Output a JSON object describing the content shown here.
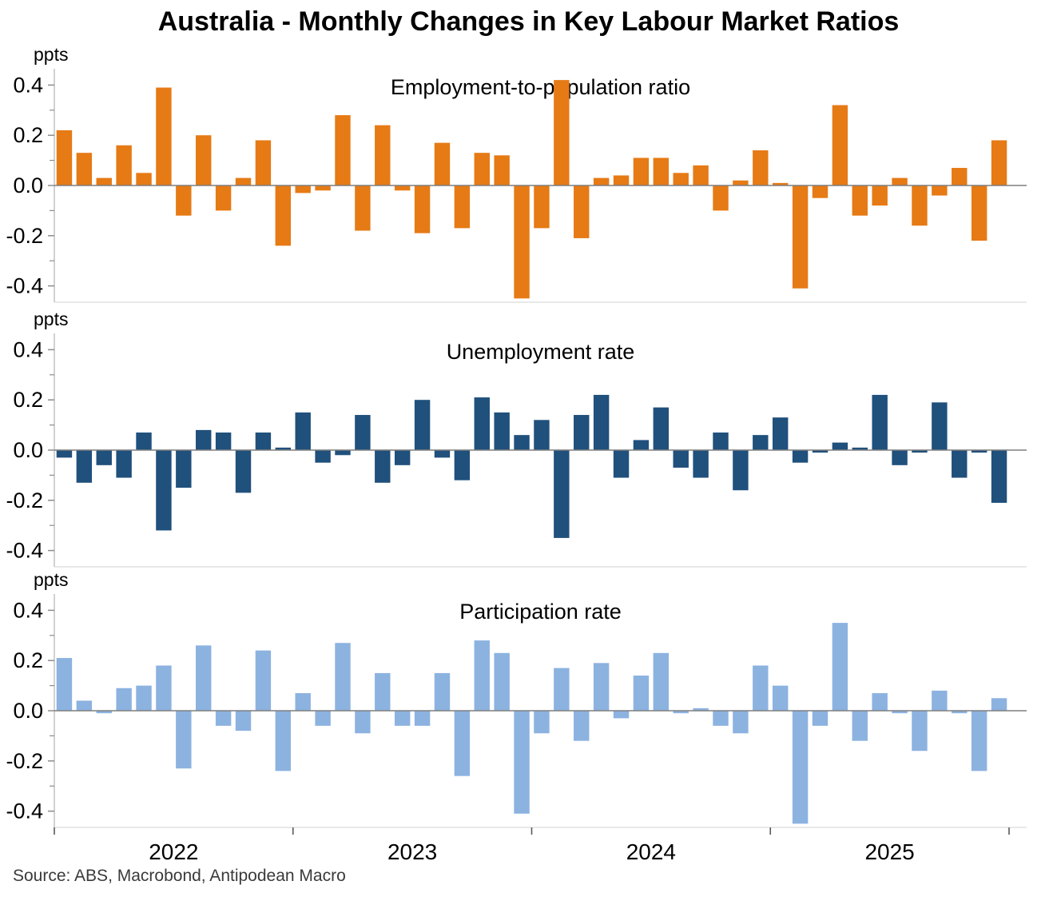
{
  "title": "Australia - Monthly Changes in Key Labour Market Ratios",
  "source": "Source: ABS, Macrobond, Antipodean Macro",
  "colors": {
    "employment_orange": "#E67A15",
    "unemployment_dark_blue": "#20507C",
    "participation_light_blue": "#8CB2E0",
    "zero_line": "#7f7f7f",
    "axis_line": "#b8b8b8",
    "bottom_line": "#d9d9d9",
    "tick_mark": "#8c8c8c",
    "x_tick_mark": "#595959",
    "label_text": "#000000"
  },
  "x_axis": {
    "year_labels": [
      "2022",
      "2023",
      "2024",
      "2025"
    ]
  },
  "chart_data": [
    {
      "type": "bar",
      "title": "Employment-to-population ratio",
      "ylabel": "ppts",
      "color_key": "employment_orange",
      "ylim": [
        -0.465,
        0.465
      ],
      "ytick_labels": [
        "0.4",
        "0.2",
        "0.0",
        "-0.2",
        "-0.4"
      ],
      "yticks_labeled": [
        0.4,
        0.2,
        0.0,
        -0.2,
        -0.4
      ],
      "yticks_minor": [
        0.3,
        0.1,
        -0.1,
        -0.3
      ],
      "values": [
        0.22,
        0.13,
        0.03,
        0.16,
        0.05,
        0.39,
        -0.12,
        0.2,
        -0.1,
        0.03,
        0.18,
        -0.24,
        -0.03,
        -0.02,
        0.28,
        -0.18,
        0.24,
        -0.02,
        -0.19,
        0.17,
        -0.17,
        0.13,
        0.12,
        -0.45,
        -0.17,
        0.42,
        -0.21,
        0.03,
        0.04,
        0.11,
        0.11,
        0.05,
        0.08,
        -0.1,
        0.02,
        0.14,
        0.01,
        -0.41,
        -0.05,
        0.32,
        -0.12,
        -0.08,
        0.03,
        -0.16,
        -0.04,
        0.07,
        -0.22,
        0.18
      ]
    },
    {
      "type": "bar",
      "title": "Unemployment rate",
      "ylabel": "ppts",
      "color_key": "unemployment_dark_blue",
      "ylim": [
        -0.465,
        0.465
      ],
      "ytick_labels": [
        "0.4",
        "0.2",
        "0.0",
        "-0.2",
        "-0.4"
      ],
      "yticks_labeled": [
        0.4,
        0.2,
        0.0,
        -0.2,
        -0.4
      ],
      "yticks_minor": [
        0.3,
        0.1,
        -0.1,
        -0.3
      ],
      "values": [
        -0.03,
        -0.13,
        -0.06,
        -0.11,
        0.07,
        -0.32,
        -0.15,
        0.08,
        0.07,
        -0.17,
        0.07,
        0.01,
        0.15,
        -0.05,
        -0.02,
        0.14,
        -0.13,
        -0.06,
        0.2,
        -0.03,
        -0.12,
        0.21,
        0.15,
        0.06,
        0.12,
        -0.35,
        0.14,
        0.22,
        -0.11,
        0.04,
        0.17,
        -0.07,
        -0.11,
        0.07,
        -0.16,
        0.06,
        0.13,
        -0.05,
        -0.01,
        0.03,
        0.01,
        0.22,
        -0.06,
        -0.01,
        0.19,
        -0.11,
        -0.01,
        -0.21
      ]
    },
    {
      "type": "bar",
      "title": "Participation rate",
      "ylabel": "ppts",
      "color_key": "participation_light_blue",
      "ylim": [
        -0.465,
        0.465
      ],
      "ytick_labels": [
        "0.4",
        "0.2",
        "0.0",
        "-0.2",
        "-0.4"
      ],
      "yticks_labeled": [
        0.4,
        0.2,
        0.0,
        -0.2,
        -0.4
      ],
      "yticks_minor": [
        0.3,
        0.1,
        -0.1,
        -0.3
      ],
      "values": [
        0.21,
        0.04,
        -0.01,
        0.09,
        0.1,
        0.18,
        -0.23,
        0.26,
        -0.06,
        -0.08,
        0.24,
        -0.24,
        0.07,
        -0.06,
        0.27,
        -0.09,
        0.15,
        -0.06,
        -0.06,
        0.15,
        -0.26,
        0.28,
        0.23,
        -0.41,
        -0.09,
        0.17,
        -0.12,
        0.19,
        -0.03,
        0.14,
        0.23,
        -0.01,
        0.01,
        -0.06,
        -0.09,
        0.18,
        0.1,
        -0.45,
        -0.06,
        0.35,
        -0.12,
        0.07,
        -0.01,
        -0.16,
        0.08,
        -0.01,
        -0.24,
        0.05
      ]
    }
  ]
}
